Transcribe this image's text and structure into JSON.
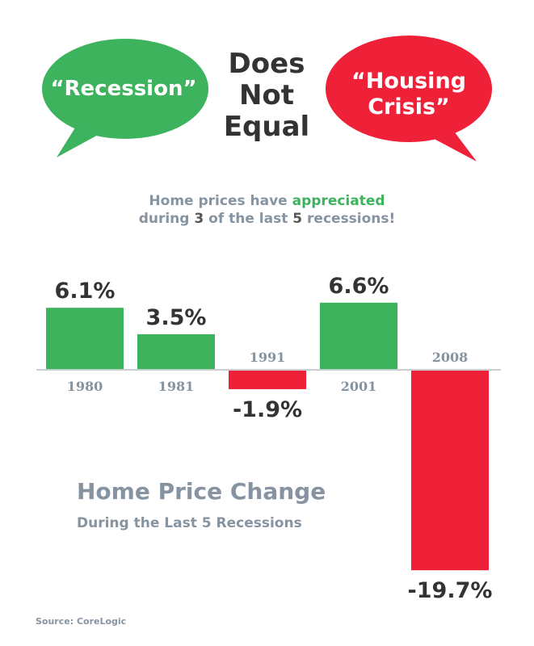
{
  "header": {
    "left_bubble": "“Recession”",
    "right_bubble_line1": "“Housing",
    "right_bubble_line2": "Crisis”",
    "middle_line1": "Does",
    "middle_line2": "Not",
    "middle_line3": "Equal",
    "colors": {
      "green": "#3db35e",
      "red": "#ee2139"
    }
  },
  "headline": {
    "part1": "Home prices have",
    "highlight": "appreciated",
    "part2": "during",
    "count": "3",
    "part3": "of the last",
    "total": "5",
    "part4": "recessions!"
  },
  "chart_data": {
    "type": "bar",
    "categories": [
      "1980",
      "1981",
      "1991",
      "2001",
      "2008"
    ],
    "values": [
      6.1,
      3.5,
      -1.9,
      6.6,
      -19.7
    ],
    "value_labels": [
      "6.1%",
      "3.5%",
      "-1.9%",
      "6.6%",
      "-19.7%"
    ],
    "title": "Home Price Change",
    "subtitle": "During the Last 5 Recessions",
    "xlabel": "",
    "ylabel": "",
    "grid": false,
    "colors": {
      "positive": "#3db35e",
      "negative": "#ee2139"
    }
  },
  "source": "Source: CoreLogic"
}
